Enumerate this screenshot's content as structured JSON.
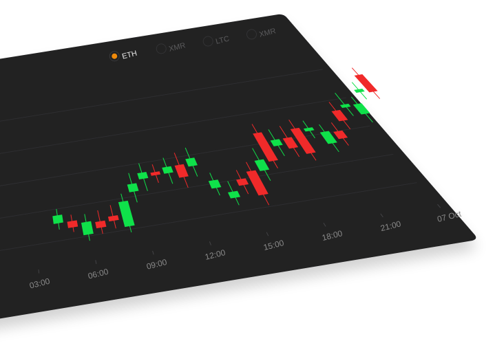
{
  "colors": {
    "panel": "#202022",
    "grid": "#2e2e31",
    "up": "#0fe14a",
    "down": "#f02a2a",
    "accent": "#f08a0a",
    "legend_active_text": "#e8e8e8",
    "legend_inactive_text": "#5a5a5c",
    "tick_text": "#8a8a8a"
  },
  "legend": {
    "items": [
      {
        "label": "ETH",
        "active": true,
        "icon": "radio-selected-icon"
      },
      {
        "label": "XMR",
        "active": false,
        "icon": "radio-empty-icon"
      },
      {
        "label": "LTC",
        "active": false,
        "icon": "radio-empty-icon"
      },
      {
        "label": "XMR",
        "active": false,
        "icon": "radio-empty-icon"
      }
    ]
  },
  "chart_data": {
    "type": "candlestick",
    "x_tick_labels": [
      "03:00",
      "06:00",
      "09:00",
      "12:00",
      "15:00",
      "18:00",
      "21:00",
      "07 Oct"
    ],
    "y_range": [
      0,
      100
    ],
    "grid": "horizontal",
    "candles": [
      {
        "d": "up",
        "o": 51,
        "c": 56,
        "h": 60,
        "l": 47
      },
      {
        "d": "down",
        "o": 51,
        "c": 47,
        "h": 55,
        "l": 44
      },
      {
        "d": "up",
        "o": 41,
        "c": 49,
        "h": 54,
        "l": 37
      },
      {
        "d": "down",
        "o": 48,
        "c": 44,
        "h": 55,
        "l": 40
      },
      {
        "d": "down",
        "o": 50,
        "c": 47,
        "h": 57,
        "l": 42
      },
      {
        "d": "up",
        "o": 42,
        "c": 58,
        "h": 63,
        "l": 38
      },
      {
        "d": "up",
        "o": 63,
        "c": 68,
        "h": 75,
        "l": 56
      },
      {
        "d": "up",
        "o": 70,
        "c": 74,
        "h": 80,
        "l": 62
      },
      {
        "d": "down",
        "o": 73,
        "c": 71,
        "h": 78,
        "l": 66
      },
      {
        "d": "up",
        "o": 71,
        "c": 75,
        "h": 81,
        "l": 64
      },
      {
        "d": "down",
        "o": 75,
        "c": 67,
        "h": 83,
        "l": 60
      },
      {
        "d": "up",
        "o": 73,
        "c": 78,
        "h": 85,
        "l": 66
      },
      {
        "d": "up",
        "o": 57,
        "c": 62,
        "h": 67,
        "l": 52
      },
      {
        "d": "up",
        "o": 49,
        "c": 53,
        "h": 60,
        "l": 44
      },
      {
        "d": "down",
        "o": 60,
        "c": 56,
        "h": 66,
        "l": 50
      },
      {
        "d": "down",
        "o": 64,
        "c": 48,
        "h": 70,
        "l": 41
      },
      {
        "d": "up",
        "o": 63,
        "c": 70,
        "h": 78,
        "l": 56
      },
      {
        "d": "down",
        "o": 87,
        "c": 68,
        "h": 93,
        "l": 63
      },
      {
        "d": "up",
        "o": 77,
        "c": 81,
        "h": 88,
        "l": 70
      },
      {
        "d": "down",
        "o": 81,
        "c": 74,
        "h": 89,
        "l": 68
      },
      {
        "d": "down",
        "o": 86,
        "c": 69,
        "h": 92,
        "l": 64
      },
      {
        "d": "up",
        "o": 83,
        "c": 85,
        "h": 90,
        "l": 78
      },
      {
        "d": "up",
        "o": 73,
        "c": 81,
        "h": 86,
        "l": 67
      },
      {
        "d": "down",
        "o": 80,
        "c": 75,
        "h": 86,
        "l": 70
      },
      {
        "d": "down",
        "o": 93,
        "c": 86,
        "h": 99,
        "l": 80
      },
      {
        "d": "up",
        "o": 94,
        "c": 96,
        "h": 104,
        "l": 88
      },
      {
        "d": "up",
        "o": 88,
        "c": 95,
        "h": 100,
        "l": 82
      },
      {
        "d": "up",
        "o": 102,
        "c": 104,
        "h": 109,
        "l": 97
      },
      {
        "d": "down",
        "o": 113,
        "c": 101,
        "h": 118,
        "l": 96
      }
    ]
  }
}
